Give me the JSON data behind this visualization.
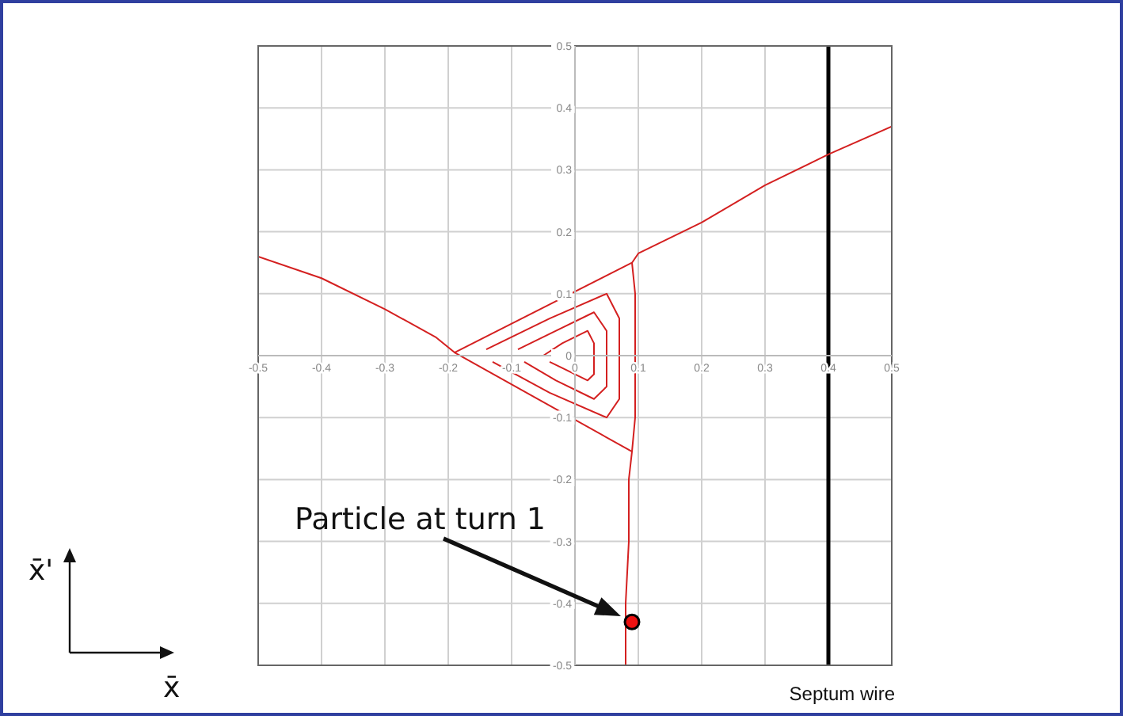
{
  "chart_data": {
    "type": "line",
    "xlim": [
      -0.5,
      0.5
    ],
    "ylim": [
      -0.5,
      0.5
    ],
    "xticks": [
      -0.5,
      -0.4,
      -0.3,
      -0.2,
      -0.1,
      0,
      0.1,
      0.2,
      0.3,
      0.4,
      0.5
    ],
    "yticks": [
      -0.5,
      -0.4,
      -0.3,
      -0.2,
      -0.1,
      0,
      0.1,
      0.2,
      0.3,
      0.4,
      0.5
    ],
    "grid": true,
    "series": [
      {
        "color": "#d42020",
        "x": [
          -0.5,
          -0.4,
          -0.3,
          -0.22,
          -0.19,
          0.09,
          0.1,
          0.2,
          0.3,
          0.4,
          0.5
        ],
        "values": [
          0.16,
          0.125,
          0.075,
          0.03,
          0.005,
          0.15,
          0.165,
          0.215,
          0.275,
          0.325,
          0.37
        ]
      },
      {
        "color": "#d42020",
        "x": [
          0.09,
          0.095,
          0.095,
          0.09,
          0.085,
          0.085,
          0.08,
          0.08
        ],
        "values": [
          0.15,
          0.1,
          -0.1,
          -0.155,
          -0.2,
          -0.3,
          -0.4,
          -0.5
        ]
      },
      {
        "color": "#d42020",
        "x": [
          -0.19,
          0.09
        ],
        "values": [
          0.005,
          -0.155
        ]
      },
      {
        "color": "#d42020",
        "x": [
          -0.14,
          -0.04,
          0.05,
          0.07,
          0.07,
          0.07,
          0.05,
          -0.04,
          -0.13
        ],
        "values": [
          0.01,
          0.06,
          0.1,
          0.06,
          0,
          -0.07,
          -0.1,
          -0.06,
          -0.01
        ]
      },
      {
        "color": "#d42020",
        "x": [
          -0.09,
          -0.03,
          0.03,
          0.05,
          0.05,
          0.05,
          0.03,
          -0.03,
          -0.08
        ],
        "values": [
          0.01,
          0.04,
          0.07,
          0.04,
          0,
          -0.05,
          -0.07,
          -0.04,
          -0.01
        ]
      },
      {
        "color": "#d42020",
        "x": [
          -0.05,
          -0.02,
          0.02,
          0.03,
          0.03,
          0.03,
          0.02,
          -0.02,
          -0.04
        ],
        "values": [
          0,
          0.02,
          0.04,
          0.02,
          0,
          -0.03,
          -0.04,
          -0.02,
          -0.01
        ]
      },
      {
        "type": "scatter",
        "marker": "circle",
        "color": "#ee1111",
        "x": [
          0.09
        ],
        "values": [
          -0.43
        ]
      }
    ],
    "ref_lines": [
      {
        "axis": "x",
        "value": 0.4,
        "label": "Septum wire",
        "color": "#000000"
      }
    ],
    "annotations": [
      "Particle at turn 1",
      "x̄'",
      "x̄"
    ]
  }
}
